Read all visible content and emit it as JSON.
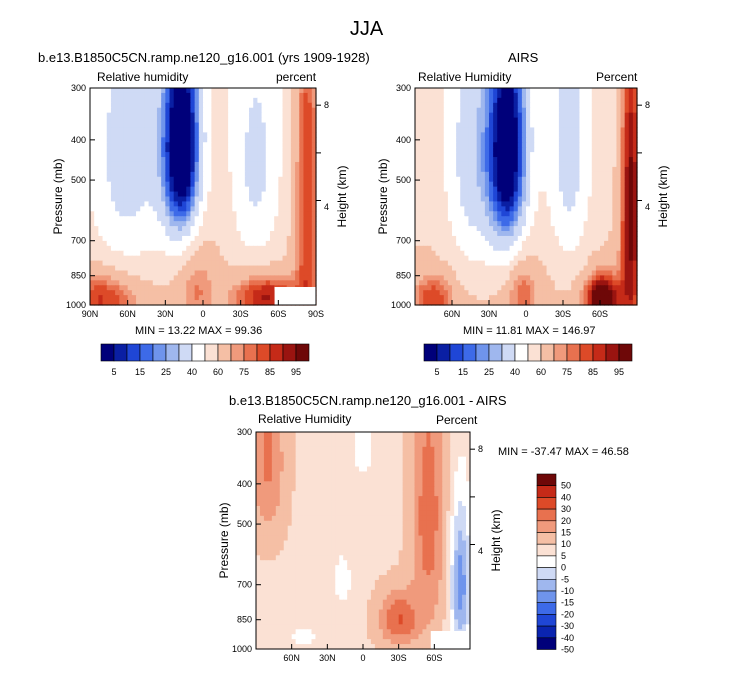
{
  "figure_title": "JJA",
  "colors": {
    "abs_scale": [
      "#00007a",
      "#0a1fa3",
      "#1f46d6",
      "#3d6ae8",
      "#6f94ec",
      "#9fb7ee",
      "#cfdaf5",
      "#ffffff",
      "#fbe1d4",
      "#f5bfa5",
      "#f09a7c",
      "#e8714f",
      "#dd4a28",
      "#c52a18",
      "#9a1410",
      "#6e0808"
    ],
    "diff_scale": [
      "#00007a",
      "#0a24b0",
      "#1f46d6",
      "#3d6ae8",
      "#6f94ec",
      "#9fb7ee",
      "#cfdaf5",
      "#ffffff",
      "#fbe1d4",
      "#f5bfa5",
      "#f09a7c",
      "#e8714f",
      "#dd4a28",
      "#c52a18",
      "#6e0808"
    ]
  },
  "shared_labelbar": {
    "labels": [
      "5",
      "15",
      "25",
      "40",
      "60",
      "75",
      "85",
      "95"
    ]
  },
  "chart_data": [
    {
      "type": "heatmap",
      "title": "b.e13.B1850C5CN.ramp.ne120_g16.001 (yrs 1909-1928)",
      "left_label": "Relative humidity",
      "right_label": "percent",
      "xlabel": "",
      "ylabel": "Pressure (mb)",
      "y2label": "Height (km)",
      "x_ticks": [
        "90N",
        "60N",
        "30N",
        "0",
        "30S",
        "60S",
        "90S"
      ],
      "x_tick_values": [
        90,
        60,
        30,
        0,
        -30,
        -60,
        -90
      ],
      "xlim": [
        90,
        -90
      ],
      "y_ticks": [
        "300",
        "400",
        "500",
        "700",
        "850",
        "1000"
      ],
      "y_tick_values": [
        300,
        400,
        500,
        700,
        850,
        1000
      ],
      "ylim": [
        300,
        1000
      ],
      "y2_ticks": [
        "8",
        "4"
      ],
      "stats": "MIN = 13.22  MAX = 99.36",
      "min": 13.22,
      "max": 99.36,
      "palette": "abs",
      "missing_box": {
        "lat": [
          -57,
          -90
        ],
        "p": [
          905,
          1000
        ]
      },
      "features": [
        {
          "lat": 17,
          "p": 420,
          "sx": 11,
          "sy": 180,
          "amp": -66
        },
        {
          "lat": 60,
          "p": 470,
          "sx": 22,
          "sy": 260,
          "amp": -22
        },
        {
          "lat": -42,
          "p": 480,
          "sx": 14,
          "sy": 220,
          "amp": -20
        },
        {
          "lat": 5,
          "p": 900,
          "sx": 10,
          "sy": 160,
          "amp": 14
        },
        {
          "lat": -50,
          "p": 950,
          "sx": 18,
          "sy": 80,
          "amp": 30
        },
        {
          "lat": -83,
          "p": 500,
          "sx": 7,
          "sy": 450,
          "amp": 28
        },
        {
          "lat": 80,
          "p": 960,
          "sx": 20,
          "sy": 100,
          "amp": 25
        }
      ],
      "base": 55
    },
    {
      "type": "heatmap",
      "title": "AIRS",
      "left_label": "Relative Humidity",
      "right_label": "Percent",
      "xlabel": "",
      "ylabel": "Pressure (mb)",
      "y2label": "Height (km)",
      "x_ticks": [
        "60N",
        "30N",
        "0",
        "30S",
        "60S"
      ],
      "x_tick_values": [
        60,
        30,
        0,
        -30,
        -60
      ],
      "xlim": [
        90,
        -90
      ],
      "y_ticks": [
        "300",
        "400",
        "500",
        "700",
        "850",
        "1000"
      ],
      "y_tick_values": [
        300,
        400,
        500,
        700,
        850,
        1000
      ],
      "ylim": [
        300,
        1000
      ],
      "y2_ticks": [
        "8",
        "4"
      ],
      "stats": "MIN = 11.81  MAX = 146.97",
      "min": 11.81,
      "max": 146.97,
      "palette": "abs",
      "features": [
        {
          "lat": 15,
          "p": 430,
          "sx": 12,
          "sy": 210,
          "amp": -62
        },
        {
          "lat": 45,
          "p": 470,
          "sx": 14,
          "sy": 240,
          "amp": -22
        },
        {
          "lat": -35,
          "p": 450,
          "sx": 12,
          "sy": 230,
          "amp": -22
        },
        {
          "lat": 3,
          "p": 930,
          "sx": 9,
          "sy": 130,
          "amp": 18
        },
        {
          "lat": -62,
          "p": 960,
          "sx": 10,
          "sy": 90,
          "amp": 45
        },
        {
          "lat": -85,
          "p": 560,
          "sx": 6,
          "sy": 400,
          "amp": 40
        },
        {
          "lat": 75,
          "p": 960,
          "sx": 12,
          "sy": 90,
          "amp": 22
        }
      ],
      "base": 55
    },
    {
      "type": "heatmap",
      "title": "b.e13.B1850C5CN.ramp.ne120_g16.001 - AIRS",
      "left_label": "Relative Humidity",
      "right_label": "Percent",
      "xlabel": "",
      "ylabel": "Pressure (mb)",
      "y2label": "Height (km)",
      "x_ticks": [
        "60N",
        "30N",
        "0",
        "30S",
        "60S"
      ],
      "x_tick_values": [
        60,
        30,
        0,
        -30,
        -60
      ],
      "xlim": [
        90,
        -90
      ],
      "y_ticks": [
        "300",
        "400",
        "500",
        "700",
        "850",
        "1000"
      ],
      "y_tick_values": [
        300,
        400,
        500,
        700,
        850,
        1000
      ],
      "ylim": [
        300,
        1000
      ],
      "y2_ticks": [
        "8",
        "4"
      ],
      "stats": "MIN = -37.47  MAX =  46.58",
      "min": -37.47,
      "max": 46.58,
      "palette": "diff",
      "missing_box": {
        "lat": [
          -57,
          -90
        ],
        "p": [
          905,
          1000
        ]
      },
      "features": [
        {
          "lat": -55,
          "p": 480,
          "sx": 10,
          "sy": 260,
          "amp": 14
        },
        {
          "lat": -30,
          "p": 850,
          "sx": 12,
          "sy": 90,
          "amp": 16
        },
        {
          "lat": 80,
          "p": 350,
          "sx": 10,
          "sy": 120,
          "amp": 12
        },
        {
          "lat": -82,
          "p": 700,
          "sx": 6,
          "sy": 200,
          "amp": -22
        },
        {
          "lat": 17,
          "p": 680,
          "sx": 7,
          "sy": 90,
          "amp": -6
        },
        {
          "lat": 0,
          "p": 320,
          "sx": 8,
          "sy": 60,
          "amp": -6
        },
        {
          "lat": 50,
          "p": 930,
          "sx": 14,
          "sy": 60,
          "amp": -5
        }
      ],
      "base": 4
    }
  ],
  "diff_labelbar": {
    "labels": [
      "50",
      "40",
      "30",
      "20",
      "15",
      "10",
      "5",
      "0",
      "-5",
      "-10",
      "-15",
      "-20",
      "-30",
      "-40",
      "-50"
    ]
  }
}
